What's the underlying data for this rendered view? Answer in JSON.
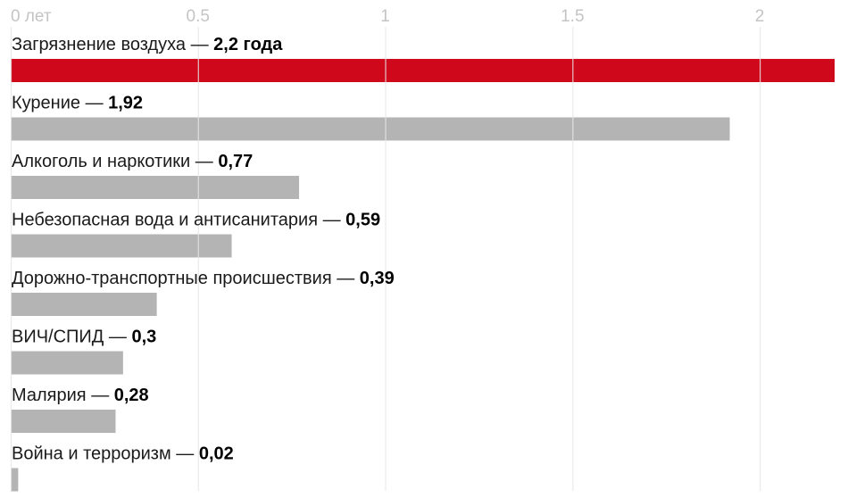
{
  "chart_data": {
    "type": "bar",
    "orientation": "horizontal",
    "x_ticks": [
      {
        "value": 0,
        "label": "0 лет"
      },
      {
        "value": 0.5,
        "label": "0.5"
      },
      {
        "value": 1,
        "label": "1"
      },
      {
        "value": 1.5,
        "label": "1.5"
      },
      {
        "value": 2,
        "label": "2"
      }
    ],
    "xlim": [
      0,
      2.2
    ],
    "grid": true,
    "highlight_color": "#d0081b",
    "bar_color": "#b4b4b4",
    "gridline_color": "#e6e6e6",
    "separator": " — ",
    "categories": [
      "Загрязнение воздуха",
      "Курение",
      "Алкоголь и наркотики",
      "Небезопасная вода и антисанитария",
      "Дорожно-транспортные происшествия",
      "ВИЧ/СПИД",
      "Малярия",
      "Война и терроризм"
    ],
    "values": [
      2.2,
      1.92,
      0.77,
      0.59,
      0.39,
      0.3,
      0.28,
      0.02
    ],
    "value_labels": [
      "2,2 года",
      "1,92",
      "0,77",
      "0,59",
      "0,39",
      "0,3",
      "0,28",
      "0,02"
    ],
    "highlight_index": 0
  }
}
